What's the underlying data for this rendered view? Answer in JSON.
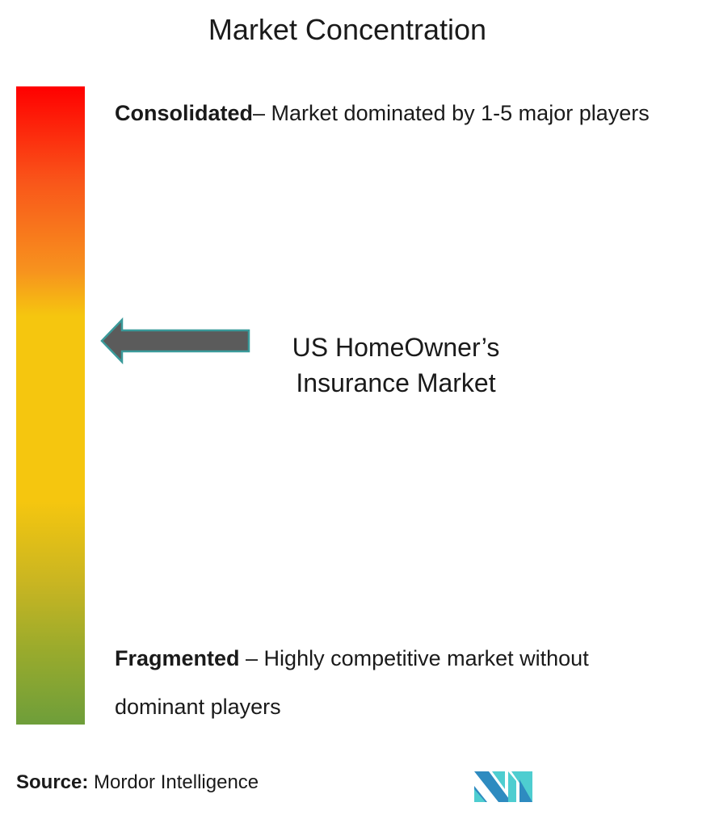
{
  "title": "Market Concentration",
  "scale": {
    "top_color": "#ff0000",
    "middle_color": "#f5c60f",
    "bottom_color": "#6e9e3a"
  },
  "consolidated": {
    "label": "Consolidated",
    "text": "– Market dominated by 1-5 major players"
  },
  "fragmented": {
    "label": "Fragmented",
    "text": " – Highly competitive market without dominant players"
  },
  "market": {
    "line1": "US HomeOwner’s",
    "line2": "Insurance Market"
  },
  "indicator": {
    "icon": "arrow-left-icon",
    "position": "upper-middle (moderately consolidated)",
    "fill": "#5b5b5b",
    "stroke": "#3a9a9a"
  },
  "source": {
    "label": "Source:",
    "text": " Mordor Intelligence"
  },
  "logo": {
    "name": "Mordor Intelligence logo",
    "colors": [
      "#2e8bc0",
      "#4ecdd0"
    ]
  }
}
